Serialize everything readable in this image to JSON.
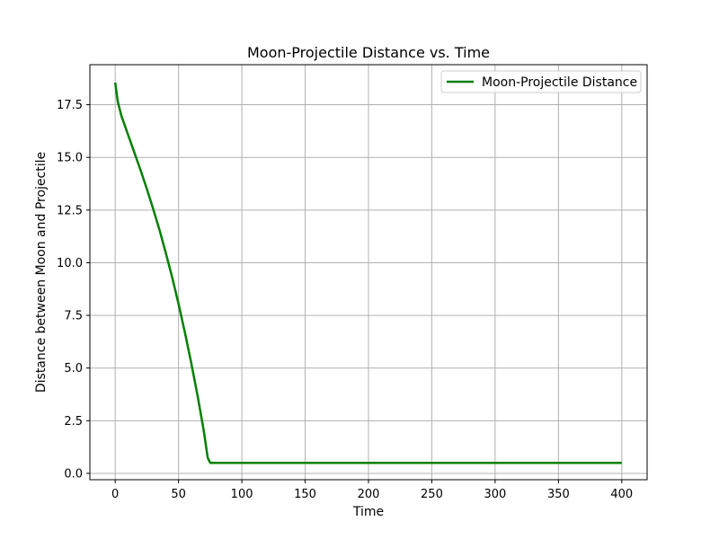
{
  "chart_data": {
    "type": "line",
    "title": "Moon-Projectile Distance vs. Time",
    "xlabel": "Time",
    "ylabel": "Distance between Moon and Projectile",
    "xlim": [
      -20,
      420
    ],
    "ylim": [
      -0.3,
      19.4
    ],
    "xticks": [
      0,
      50,
      100,
      150,
      200,
      250,
      300,
      350,
      400
    ],
    "yticks": [
      0.0,
      2.5,
      5.0,
      7.5,
      10.0,
      12.5,
      15.0,
      17.5
    ],
    "xtick_labels": [
      "0",
      "50",
      "100",
      "150",
      "200",
      "250",
      "300",
      "350",
      "400"
    ],
    "ytick_labels": [
      "0.0",
      "2.5",
      "5.0",
      "7.5",
      "10.0",
      "12.5",
      "15.0",
      "17.5"
    ],
    "grid": true,
    "legend_position": "top-right",
    "series": [
      {
        "name": "Moon-Projectile Distance",
        "color": "#008000",
        "x": [
          0,
          2,
          5,
          10,
          15,
          20,
          25,
          30,
          35,
          40,
          45,
          50,
          55,
          60,
          65,
          70,
          73,
          75,
          76,
          80,
          100,
          150,
          200,
          250,
          300,
          350,
          400
        ],
        "y": [
          18.55,
          17.65,
          16.95,
          16.1,
          15.25,
          14.4,
          13.5,
          12.55,
          11.55,
          10.45,
          9.3,
          8.05,
          6.7,
          5.25,
          3.7,
          2.0,
          0.75,
          0.5,
          0.5,
          0.5,
          0.5,
          0.5,
          0.5,
          0.5,
          0.5,
          0.5,
          0.5
        ]
      }
    ]
  }
}
